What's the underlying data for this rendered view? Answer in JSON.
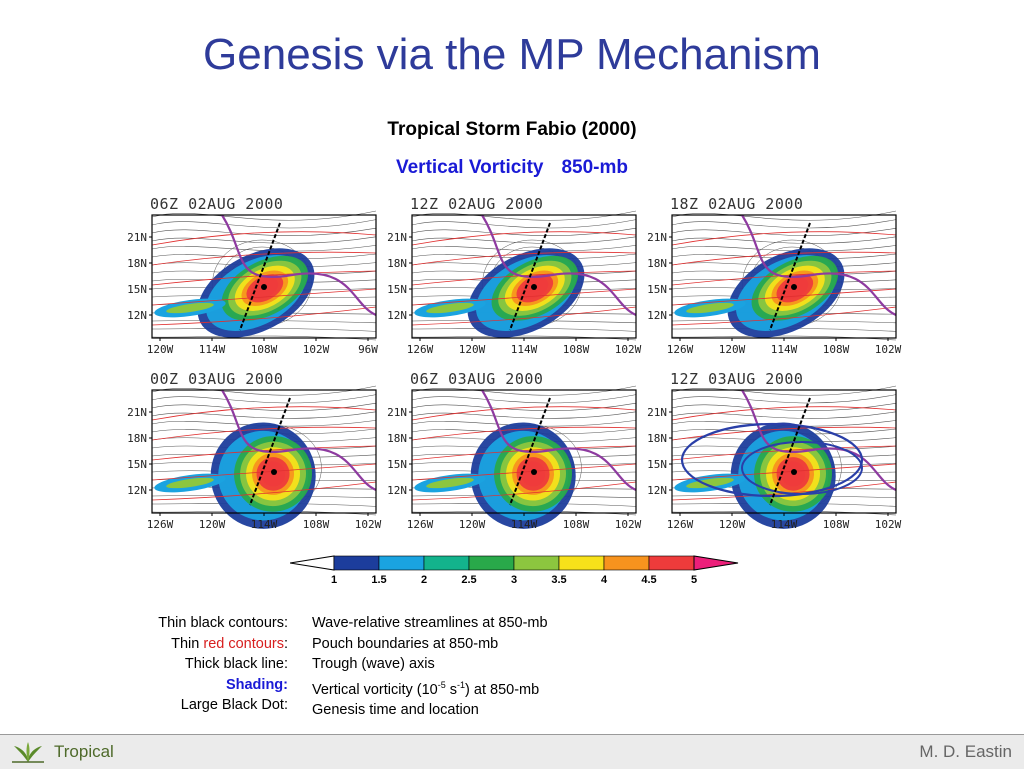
{
  "slide": {
    "title": "Genesis via the MP Mechanism",
    "subtitle": "Tropical Storm Fabio (2000)",
    "subtitle2_a": "Vertical Vorticity",
    "subtitle2_b": "850-mb"
  },
  "panels": [
    {
      "title": "06Z 02AUG 2000",
      "xticks": [
        "120W",
        "114W",
        "108W",
        "102W",
        "96W"
      ]
    },
    {
      "title": "12Z 02AUG 2000",
      "xticks": [
        "126W",
        "120W",
        "114W",
        "108W",
        "102W"
      ]
    },
    {
      "title": "18Z 02AUG 2000",
      "xticks": [
        "126W",
        "120W",
        "114W",
        "108W",
        "102W"
      ]
    },
    {
      "title": "00Z 03AUG 2000",
      "xticks": [
        "126W",
        "120W",
        "114W",
        "108W",
        "102W"
      ]
    },
    {
      "title": "06Z 03AUG 2000",
      "xticks": [
        "126W",
        "120W",
        "114W",
        "108W",
        "102W"
      ]
    },
    {
      "title": "12Z 03AUG 2000",
      "xticks": [
        "126W",
        "120W",
        "114W",
        "108W",
        "102W"
      ]
    }
  ],
  "yticks": [
    "21N",
    "18N",
    "15N",
    "12N"
  ],
  "colorbar": {
    "labels": [
      "1",
      "1.5",
      "2",
      "2.5",
      "3",
      "3.5",
      "4",
      "4.5",
      "5"
    ],
    "colors": [
      "#1c3d9c",
      "#1aa3e0",
      "#13b38c",
      "#29a94a",
      "#8cc63f",
      "#f7e11a",
      "#f7931e",
      "#ee3b3b",
      "#ec1f7a"
    ]
  },
  "notes": {
    "labels": {
      "row1": "Thin black contours:",
      "row2_pre": "Thin ",
      "row2_red": "red contours",
      "row2_post": ":",
      "row3": "Thick black line:",
      "row4": "Shading:",
      "row5": "Large Black Dot:"
    },
    "values": {
      "row1": "Wave-relative streamlines at 850-mb",
      "row2": "Pouch boundaries at 850-mb",
      "row3": "Trough (wave) axis",
      "row4_pre": "Vertical vorticity (10",
      "row4_exp1": "-5",
      "row4_mid": " s",
      "row4_exp2": "-1",
      "row4_post": ") at 850-mb",
      "row5": "Genesis time and location"
    }
  },
  "footer": {
    "left": "Tropical",
    "right": "M. D. Eastin"
  }
}
